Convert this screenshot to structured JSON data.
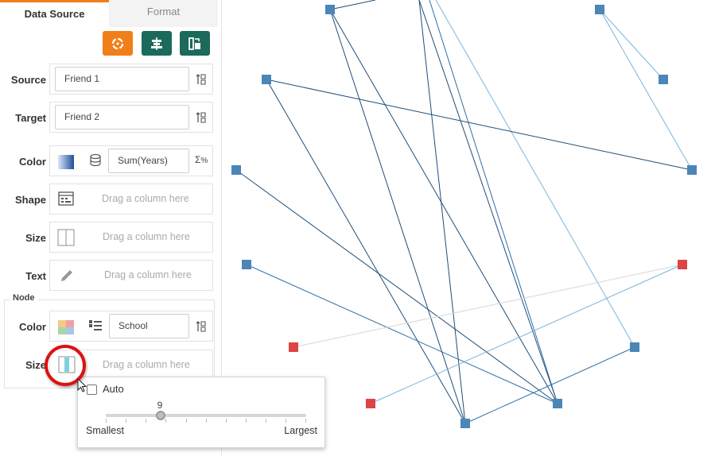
{
  "tabs": [
    {
      "label": "Data Source",
      "active": true
    },
    {
      "label": "Format",
      "active": false
    }
  ],
  "toolbar": {
    "buttons": [
      {
        "name": "refresh-button",
        "icon": "refresh-icon",
        "color": "#f07f1b"
      },
      {
        "name": "align-button",
        "icon": "align-icon",
        "color": "#1b6a5c"
      },
      {
        "name": "swap-button",
        "icon": "swap-icon",
        "color": "#1b6a5c"
      }
    ]
  },
  "rows": {
    "source": {
      "label": "Source",
      "value": "Friend 1"
    },
    "target": {
      "label": "Target",
      "value": "Friend 2"
    },
    "color": {
      "label": "Color",
      "value": "Sum(Years)"
    },
    "shape": {
      "label": "Shape",
      "placeholder": "Drag a column here"
    },
    "size": {
      "label": "Size",
      "placeholder": "Drag a column here"
    },
    "text": {
      "label": "Text",
      "placeholder": "Drag a column here"
    }
  },
  "node": {
    "title": "Node",
    "color": {
      "label": "Color",
      "value": "School"
    },
    "size": {
      "label": "Size",
      "placeholder": "Drag a column here"
    }
  },
  "size_popup": {
    "auto_label": "Auto",
    "auto_checked": false,
    "value": "9",
    "min_label": "Smallest",
    "max_label": "Largest",
    "level": 0.29
  },
  "graph": {
    "colors": {
      "blue_node": "#4a86b8",
      "red_node": "#dd4444",
      "dark_edge": "#1f4e79",
      "light_edge": "#7ab4dc",
      "faint_edge": "#d8d8d8"
    },
    "node_count": 12
  }
}
